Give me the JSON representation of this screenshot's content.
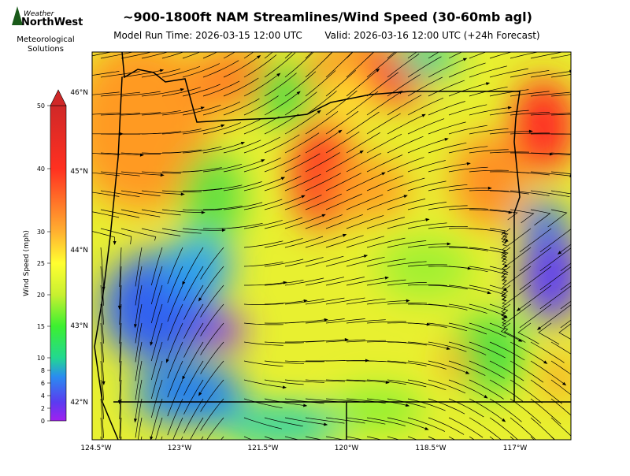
{
  "logo": {
    "brand_top": "Weather",
    "brand_main": "NorthWest",
    "caption": [
      "Meteorological",
      "Solutions"
    ]
  },
  "title": "~900-1800ft NAM Streamlines/Wind Speed (30-60mb agl)",
  "model_run": "Model Run Time: 2026-03-15 12:00 UTC",
  "valid": "Valid: 2026-03-16 12:00 UTC  (+24h Forecast)",
  "colorbar": {
    "label": "Wind Speed (mph)",
    "range": [
      0,
      50
    ],
    "ticks": [
      0,
      2,
      4,
      6,
      8,
      10,
      15,
      20,
      25,
      30,
      40,
      50
    ]
  },
  "lat_labels": [
    "46°N",
    "45°N",
    "44°N",
    "43°N",
    "42°N"
  ],
  "lon_labels": [
    "124.5°W",
    "123°W",
    "121.5°W",
    "120°W",
    "118.5°W",
    "117°W"
  ]
}
